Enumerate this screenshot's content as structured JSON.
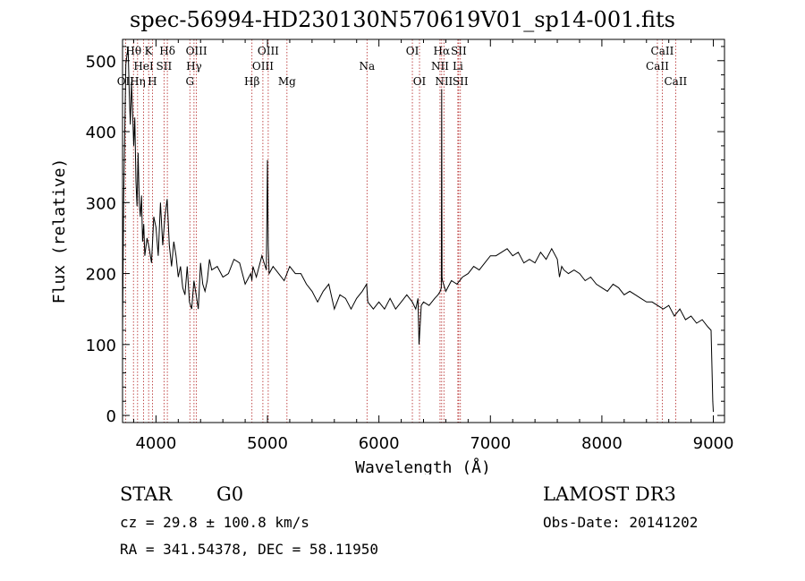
{
  "colors": {
    "spectrum": "#000000",
    "line_marker": "#b22222",
    "axis": "#000000"
  },
  "chart_data": {
    "type": "line",
    "title": "spec-56994-HD230130N570619V01_sp14-001.fits",
    "xlabel": "Wavelength (Å)",
    "ylabel": "Flux (relative)",
    "xlim": [
      3700,
      9100
    ],
    "ylim": [
      -10,
      530
    ],
    "xticks": [
      4000,
      5000,
      6000,
      7000,
      8000,
      9000
    ],
    "yticks": [
      0,
      100,
      200,
      300,
      400,
      500
    ],
    "grid": false,
    "series": [
      {
        "name": "spectrum",
        "x": [
          3700,
          3710,
          3730,
          3750,
          3760,
          3770,
          3780,
          3790,
          3800,
          3810,
          3820,
          3830,
          3840,
          3850,
          3860,
          3870,
          3880,
          3890,
          3900,
          3920,
          3940,
          3960,
          3980,
          4000,
          4020,
          4040,
          4060,
          4080,
          4100,
          4120,
          4140,
          4160,
          4180,
          4200,
          4220,
          4240,
          4260,
          4280,
          4300,
          4320,
          4340,
          4360,
          4380,
          4400,
          4420,
          4440,
          4460,
          4480,
          4500,
          4550,
          4600,
          4650,
          4700,
          4750,
          4800,
          4850,
          4860,
          4870,
          4900,
          4950,
          4990,
          5000,
          5007,
          5015,
          5050,
          5100,
          5150,
          5200,
          5250,
          5300,
          5350,
          5400,
          5450,
          5500,
          5550,
          5600,
          5650,
          5700,
          5750,
          5800,
          5850,
          5890,
          5900,
          5950,
          6000,
          6050,
          6100,
          6150,
          6200,
          6250,
          6300,
          6330,
          6350,
          6360,
          6380,
          6400,
          6450,
          6500,
          6530,
          6550,
          6560,
          6563,
          6566,
          6570,
          6580,
          6600,
          6650,
          6700,
          6750,
          6800,
          6850,
          6900,
          6950,
          7000,
          7050,
          7100,
          7150,
          7200,
          7250,
          7300,
          7350,
          7400,
          7450,
          7500,
          7550,
          7600,
          7620,
          7640,
          7660,
          7700,
          7750,
          7800,
          7850,
          7900,
          7950,
          8000,
          8050,
          8100,
          8150,
          8200,
          8250,
          8300,
          8350,
          8400,
          8450,
          8500,
          8550,
          8600,
          8650,
          8700,
          8750,
          8800,
          8850,
          8900,
          8950,
          8980,
          8995,
          9000
        ],
        "values": [
          115,
          300,
          495,
          520,
          455,
          410,
          470,
          430,
          380,
          420,
          330,
          295,
          370,
          300,
          280,
          310,
          245,
          270,
          225,
          250,
          235,
          215,
          280,
          265,
          225,
          300,
          240,
          280,
          305,
          240,
          210,
          245,
          225,
          195,
          210,
          180,
          170,
          210,
          160,
          150,
          190,
          170,
          150,
          215,
          185,
          175,
          190,
          220,
          205,
          210,
          195,
          200,
          220,
          215,
          185,
          200,
          190,
          210,
          195,
          225,
          205,
          360,
          240,
          200,
          210,
          200,
          190,
          210,
          200,
          200,
          185,
          175,
          160,
          175,
          185,
          150,
          170,
          165,
          150,
          165,
          175,
          185,
          160,
          150,
          160,
          150,
          165,
          150,
          160,
          170,
          160,
          150,
          165,
          100,
          155,
          160,
          155,
          165,
          170,
          175,
          180,
          460,
          195,
          190,
          185,
          175,
          190,
          185,
          195,
          200,
          210,
          205,
          215,
          225,
          225,
          230,
          235,
          225,
          230,
          215,
          220,
          215,
          230,
          220,
          235,
          220,
          195,
          210,
          205,
          200,
          205,
          200,
          190,
          195,
          185,
          180,
          175,
          185,
          180,
          170,
          175,
          170,
          165,
          160,
          160,
          155,
          150,
          155,
          140,
          150,
          135,
          140,
          130,
          135,
          125,
          120,
          20,
          5
        ]
      }
    ],
    "line_markers": [
      {
        "label": "Hθ",
        "x": 3798,
        "row": 1
      },
      {
        "label": "OII",
        "x": 3727,
        "row": 3
      },
      {
        "label": "Hη",
        "x": 3835,
        "row": 3
      },
      {
        "label": "HeI",
        "x": 3889,
        "row": 2
      },
      {
        "label": "K",
        "x": 3934,
        "row": 1
      },
      {
        "label": "H",
        "x": 3968,
        "row": 3
      },
      {
        "label": "SII",
        "x": 4072,
        "row": 2
      },
      {
        "label": "Hδ",
        "x": 4102,
        "row": 1
      },
      {
        "label": "G",
        "x": 4304,
        "row": 3
      },
      {
        "label": "Hγ",
        "x": 4341,
        "row": 2
      },
      {
        "label": "OIII",
        "x": 4363,
        "row": 1
      },
      {
        "label": "Hβ",
        "x": 4861,
        "row": 3
      },
      {
        "label": "OIII",
        "x": 4959,
        "row": 2
      },
      {
        "label": "OIII",
        "x": 5007,
        "row": 1
      },
      {
        "label": "Mg",
        "x": 5175,
        "row": 3
      },
      {
        "label": "Na",
        "x": 5893,
        "row": 2
      },
      {
        "label": "OI",
        "x": 6300,
        "row": 1
      },
      {
        "label": "OI",
        "x": 6364,
        "row": 3
      },
      {
        "label": "NII",
        "x": 6548,
        "row": 2
      },
      {
        "label": "Hα",
        "x": 6563,
        "row": 1
      },
      {
        "label": "NII",
        "x": 6583,
        "row": 3
      },
      {
        "label": "SII",
        "x": 6716,
        "row": 1
      },
      {
        "label": "Li",
        "x": 6708,
        "row": 2
      },
      {
        "label": "SII",
        "x": 6731,
        "row": 3
      },
      {
        "label": "CaII",
        "x": 8498,
        "row": 2
      },
      {
        "label": "CaII",
        "x": 8542,
        "row": 1
      },
      {
        "label": "CaII",
        "x": 8662,
        "row": 3
      }
    ]
  },
  "info": {
    "class_label": "STAR",
    "subclass": "G0",
    "survey": "LAMOST DR3",
    "redshift_text": "cz = 29.8 ± 100.8 km/s",
    "obs_date_text": "Obs-Date: 20141202",
    "coords_text": "RA = 341.54378, DEC =  58.11950"
  }
}
